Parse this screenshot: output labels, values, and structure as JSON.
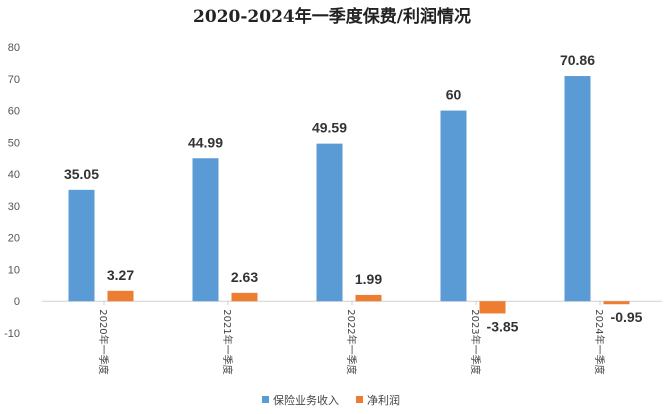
{
  "chart_data": {
    "type": "bar",
    "title": "2020-2024年一季度保费/利润情况",
    "categories": [
      "2020年一季度",
      "2021年一季度",
      "2022年一季度",
      "2023年一季度",
      "2024年一季度"
    ],
    "series": [
      {
        "name": "保险业务收入",
        "values": [
          35.05,
          44.99,
          49.59,
          60,
          70.86
        ],
        "labels": [
          "35.05",
          "44.99",
          "49.59",
          "60",
          "70.86"
        ],
        "color": "#5B9BD5"
      },
      {
        "name": "净利润",
        "values": [
          3.27,
          2.63,
          1.99,
          -3.85,
          -0.95
        ],
        "labels": [
          "3.27",
          "2.63",
          "1.99",
          "-3.85",
          "-0.95"
        ],
        "color": "#ED7D31"
      }
    ],
    "ylim": [
      -10,
      80
    ],
    "yticks": [
      -10,
      0,
      10,
      20,
      30,
      40,
      50,
      60,
      70,
      80
    ],
    "xlabel": "",
    "ylabel": "",
    "grid": false,
    "legend": "bottom"
  }
}
